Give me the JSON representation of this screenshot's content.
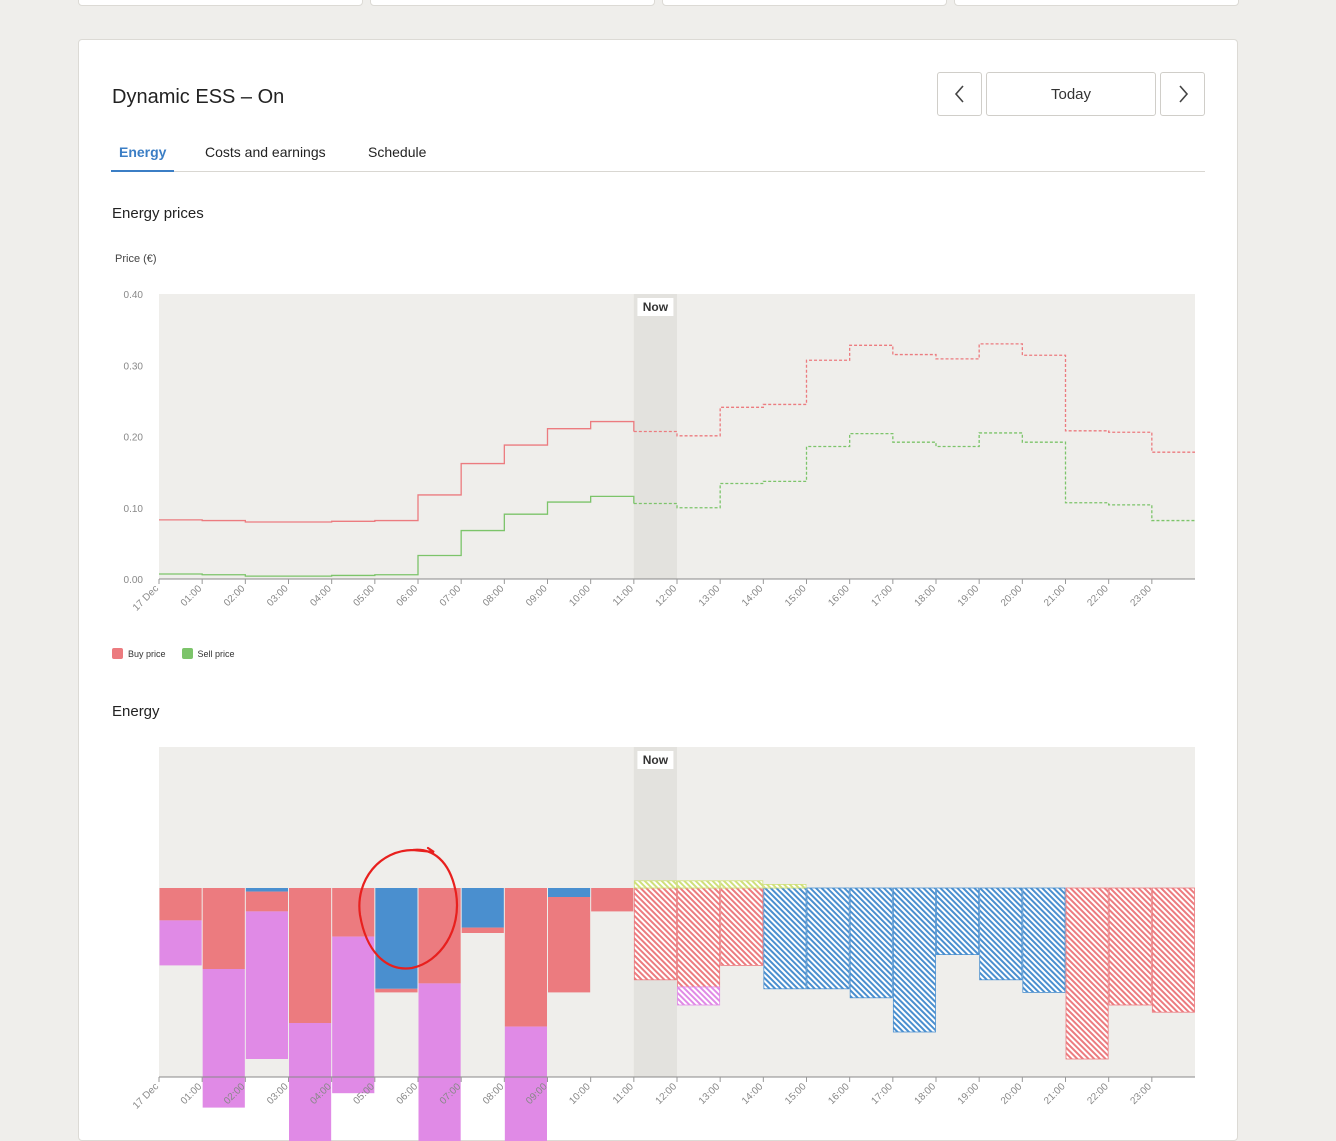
{
  "header": {
    "title": "Dynamic ESS – On",
    "today_label": "Today",
    "prev_icon": "chevron-left-icon",
    "next_icon": "chevron-right-icon"
  },
  "tabs": [
    {
      "label": "Energy",
      "active": true
    },
    {
      "label": "Costs and earnings",
      "active": false
    },
    {
      "label": "Schedule",
      "active": false
    }
  ],
  "prices_section": {
    "title": "Energy prices",
    "ylabel": "Price (€)",
    "now_label": "Now"
  },
  "energy_section": {
    "title": "Energy",
    "now_label": "Now"
  },
  "legend": [
    {
      "label": "Buy price",
      "color": "#ec7b7f"
    },
    {
      "label": "Sell price",
      "color": "#7cc46a"
    }
  ],
  "colors": {
    "buy": "#ec7b7f",
    "sell": "#7cc46a",
    "grid_import": "#ec7b7f",
    "battery": "#4a8fcf",
    "consumption": "#e08ae6",
    "solar": "#cfe07a",
    "now_band": "#e3e2de",
    "plot_bg": "#efeeeb"
  },
  "annotation": {
    "shape": "red-circle-mark",
    "color": "#e8201e"
  },
  "chart_data": [
    {
      "type": "line",
      "step": true,
      "title": "Energy prices",
      "ylabel": "Price (€)",
      "ylim": [
        0,
        0.4
      ],
      "yticks": [
        "0.00",
        "0.10",
        "0.20",
        "0.30",
        "0.40"
      ],
      "x": [
        "17 Dec",
        "01:00",
        "02:00",
        "03:00",
        "04:00",
        "05:00",
        "06:00",
        "07:00",
        "08:00",
        "09:00",
        "10:00",
        "11:00",
        "12:00",
        "13:00",
        "14:00",
        "15:00",
        "16:00",
        "17:00",
        "18:00",
        "19:00",
        "20:00",
        "21:00",
        "22:00",
        "23:00"
      ],
      "now_hour": 11,
      "forecast_from_hour": 11,
      "series": [
        {
          "name": "Buy price",
          "values": [
            0.083,
            0.082,
            0.08,
            0.08,
            0.081,
            0.082,
            0.118,
            0.162,
            0.188,
            0.211,
            0.221,
            0.207,
            0.201,
            0.241,
            0.245,
            0.307,
            0.328,
            0.315,
            0.309,
            0.33,
            0.314,
            0.208,
            0.206,
            0.178
          ]
        },
        {
          "name": "Sell price",
          "values": [
            0.007,
            0.006,
            0.004,
            0.004,
            0.005,
            0.006,
            0.033,
            0.068,
            0.091,
            0.108,
            0.116,
            0.106,
            0.1,
            0.134,
            0.137,
            0.186,
            0.204,
            0.192,
            0.186,
            0.205,
            0.192,
            0.107,
            0.104,
            0.082
          ]
        }
      ]
    },
    {
      "type": "bar",
      "stacked": true,
      "title": "Energy",
      "x": [
        "17 Dec",
        "01:00",
        "02:00",
        "03:00",
        "04:00",
        "05:00",
        "06:00",
        "07:00",
        "08:00",
        "09:00",
        "10:00",
        "11:00",
        "12:00",
        "13:00",
        "14:00",
        "15:00",
        "16:00",
        "17:00",
        "18:00",
        "19:00",
        "20:00",
        "21:00",
        "22:00",
        "23:00"
      ],
      "now_hour": 11,
      "forecast_from_hour": 11,
      "series": [
        {
          "key": "solar",
          "values": [
            0,
            0,
            0,
            0,
            0,
            0,
            0,
            0,
            0,
            0,
            0,
            0.04,
            0.04,
            0.04,
            0.02,
            0,
            0,
            0,
            0,
            0,
            0,
            0,
            0,
            0
          ]
        },
        {
          "key": "battery",
          "values": [
            0,
            0,
            -0.02,
            0,
            0,
            -0.56,
            0,
            -0.22,
            0,
            -0.05,
            0,
            0,
            0,
            0,
            -0.56,
            -0.56,
            -0.61,
            -0.8,
            -0.37,
            -0.51,
            -0.58,
            0,
            0,
            0
          ]
        },
        {
          "key": "grid_import",
          "values": [
            -0.18,
            -0.45,
            -0.11,
            -0.75,
            -0.27,
            -0.02,
            -0.53,
            -0.03,
            -0.77,
            -0.53,
            -0.13,
            -0.51,
            -0.55,
            -0.43,
            0,
            0,
            0,
            0,
            0,
            0,
            0,
            -0.95,
            -0.65,
            -0.69
          ]
        },
        {
          "key": "consumption",
          "values": [
            -0.25,
            -0.77,
            -0.82,
            -0.83,
            -0.87,
            0,
            -0.95,
            0,
            -0.93,
            0,
            0,
            0,
            -0.1,
            0,
            0,
            0,
            0,
            0,
            0,
            0,
            0,
            0,
            0,
            0
          ]
        }
      ]
    }
  ]
}
